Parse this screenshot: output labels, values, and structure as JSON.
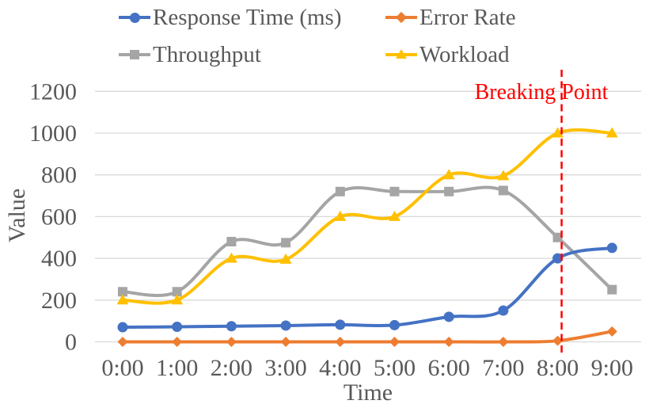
{
  "chart_data": {
    "type": "line",
    "smooth": true,
    "categories": [
      "0:00",
      "1:00",
      "2:00",
      "3:00",
      "4:00",
      "5:00",
      "6:00",
      "7:00",
      "8:00",
      "9:00"
    ],
    "series": [
      {
        "name": "Response Time (ms)",
        "color": "#4472C4",
        "marker": "circle",
        "values": [
          70,
          72,
          75,
          78,
          82,
          80,
          120,
          150,
          400,
          450
        ]
      },
      {
        "name": "Error Rate",
        "color": "#ED7D31",
        "marker": "diamond",
        "values": [
          0,
          0,
          0,
          0,
          0,
          0,
          0,
          0,
          5,
          50
        ]
      },
      {
        "name": "Throughput",
        "color": "#A5A5A5",
        "marker": "square",
        "values": [
          240,
          240,
          480,
          475,
          720,
          720,
          720,
          725,
          500,
          250
        ]
      },
      {
        "name": "Workload",
        "color": "#FFC000",
        "marker": "triangle",
        "values": [
          200,
          200,
          400,
          395,
          600,
          600,
          800,
          795,
          1000,
          1000
        ]
      }
    ],
    "xlabel": "Time",
    "ylabel": "Value",
    "ylim": [
      0,
      1300
    ],
    "yticks": [
      0,
      200,
      400,
      600,
      800,
      1000,
      1200
    ],
    "grid": true,
    "legend_position": "top",
    "annotation": {
      "text": "Breaking Point",
      "at_category": "8:00",
      "line_style": "dashed",
      "color": "#FF0000"
    }
  },
  "colors": {
    "background": "#FFFFFF",
    "gridline": "#D9D9D9",
    "text": "#595959",
    "annotation_red": "#FF0000",
    "series_blue": "#4472C4",
    "series_orange": "#ED7D31",
    "series_gray": "#A5A5A5",
    "series_yellow": "#FFC000"
  }
}
